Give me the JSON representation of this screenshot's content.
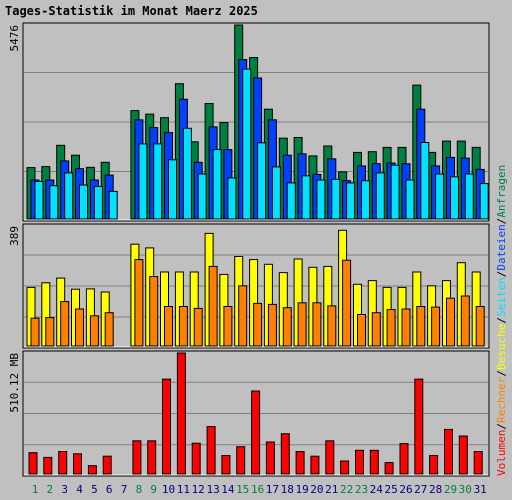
{
  "title": "Tages-Statistik im Monat Maerz 2025",
  "colors": {
    "background": "#c0c0c0",
    "title": "#0000ff",
    "hits": "#008040",
    "files": "#0040ff",
    "pages": "#00e0ff",
    "visits": "#ffff00",
    "sites": "#ff8000",
    "volume": "#ff0000",
    "weekend_label": "#008040",
    "weekday_label": "#000080"
  },
  "chart_data": [
    {
      "type": "bar",
      "panel": "top",
      "ymax_label": "5476",
      "ylim": [
        0,
        5476
      ],
      "categories": [
        "1",
        "2",
        "3",
        "4",
        "5",
        "6",
        "7",
        "8",
        "9",
        "10",
        "11",
        "12",
        "13",
        "14",
        "15",
        "16",
        "17",
        "18",
        "19",
        "20",
        "21",
        "22",
        "23",
        "24",
        "25",
        "26",
        "27",
        "28",
        "29",
        "30",
        "31"
      ],
      "weekend_days": [
        "1",
        "2",
        "8",
        "9",
        "15",
        "16",
        "22",
        "23",
        "29",
        "30"
      ],
      "series": [
        {
          "name": "Anfragen",
          "values": [
            1450,
            1480,
            2080,
            1800,
            1460,
            1600,
            0,
            3060,
            2960,
            2860,
            3820,
            2180,
            3260,
            2720,
            5476,
            4560,
            3100,
            2280,
            2300,
            1780,
            2060,
            1330,
            1880,
            1900,
            2020,
            2020,
            3780,
            1880,
            2200,
            2200,
            2020
          ]
        },
        {
          "name": "Dateien",
          "values": [
            1100,
            1100,
            1640,
            1420,
            1100,
            1240,
            0,
            2800,
            2580,
            2440,
            3380,
            1600,
            2600,
            1960,
            4500,
            3980,
            2800,
            1800,
            1840,
            1260,
            1700,
            1080,
            1500,
            1560,
            1580,
            1560,
            3100,
            1500,
            1740,
            1720,
            1400
          ]
        },
        {
          "name": "Seiten",
          "values": [
            1060,
            940,
            1300,
            960,
            920,
            780,
            0,
            2120,
            2120,
            1670,
            2560,
            1270,
            1960,
            1160,
            4230,
            2150,
            1470,
            1020,
            1220,
            1100,
            1120,
            1020,
            1080,
            1300,
            1520,
            1100,
            2160,
            1270,
            1190,
            1270,
            1000
          ]
        }
      ]
    },
    {
      "type": "bar",
      "panel": "middle",
      "ymax_label": "389",
      "ylim": [
        0,
        389
      ],
      "series": [
        {
          "name": "Besuche",
          "values": [
            190,
            205,
            220,
            184,
            185,
            175,
            0,
            330,
            318,
            240,
            240,
            240,
            365,
            232,
            290,
            280,
            265,
            238,
            282,
            255,
            258,
            375,
            200,
            212,
            190,
            190,
            240,
            195,
            212,
            270,
            240
          ]
        },
        {
          "name": "Rechner",
          "values": [
            90,
            92,
            144,
            120,
            98,
            108,
            0,
            280,
            225,
            128,
            128,
            122,
            258,
            128,
            195,
            138,
            135,
            124,
            140,
            140,
            130,
            278,
            102,
            108,
            118,
            120,
            128,
            126,
            155,
            162,
            128
          ]
        }
      ]
    },
    {
      "type": "bar",
      "panel": "bottom",
      "ymax_label": "510.12 MB",
      "ylim": [
        0,
        510.12
      ],
      "series": [
        {
          "name": "Volumen",
          "values": [
            90,
            70,
            95,
            85,
            35,
            75,
            0,
            140,
            140,
            400,
            510,
            130,
            200,
            78,
            115,
            350,
            135,
            170,
            95,
            75,
            140,
            55,
            100,
            100,
            48,
            128,
            400,
            78,
            188,
            160,
            95
          ]
        }
      ]
    }
  ],
  "legend": [
    {
      "label": "Volumen",
      "key": "volume"
    },
    {
      "label": "Rechner",
      "key": "sites"
    },
    {
      "label": "Besuche",
      "key": "visits"
    },
    {
      "label": "Seiten",
      "key": "pages"
    },
    {
      "label": "Dateien",
      "key": "files"
    },
    {
      "label": "Anfragen",
      "key": "hits"
    }
  ]
}
